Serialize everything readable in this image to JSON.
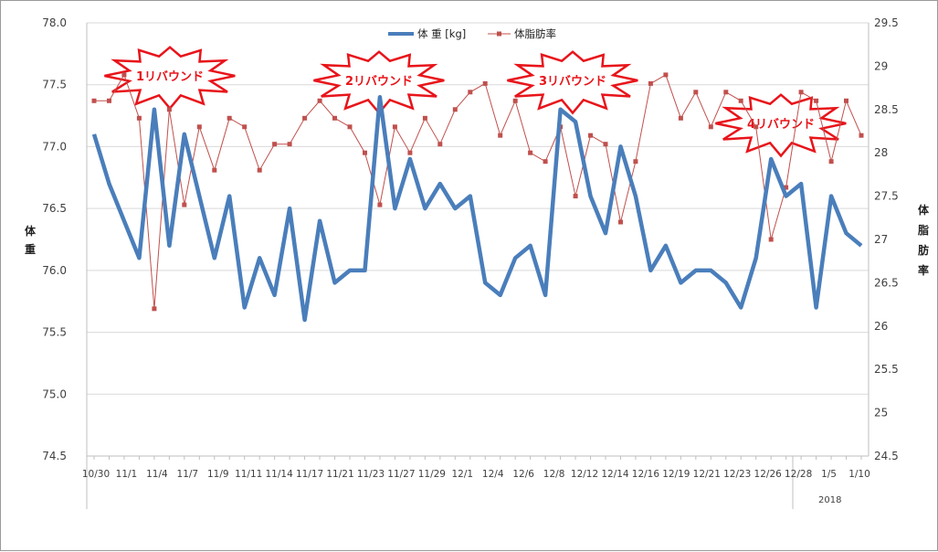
{
  "colors": {
    "weight": "#4a7ebb",
    "fat": "#c0504d",
    "burst_stroke": "#e8141a",
    "grid": "#d9d9d9"
  },
  "legend": {
    "weight": "体 重 [kg]",
    "fat": "体脂肪率"
  },
  "left_axis": {
    "title": "体重",
    "ticks": [
      "78.0",
      "77.5",
      "77.0",
      "76.5",
      "76.0",
      "75.5",
      "75.0",
      "74.5"
    ]
  },
  "right_axis": {
    "title": "体脂肪率",
    "ticks": [
      "29.5",
      "29",
      "28.5",
      "28",
      "27.5",
      "27",
      "26.5",
      "26",
      "25.5",
      "25",
      "24.5"
    ]
  },
  "x_axis": {
    "labels": [
      "10/30",
      "11/1",
      "11/4",
      "11/7",
      "11/9",
      "11/11",
      "11/14",
      "11/17",
      "11/21",
      "11/23",
      "11/27",
      "11/29",
      "12/1",
      "12/4",
      "12/6",
      "12/8",
      "12/12",
      "12/14",
      "12/16",
      "12/19",
      "12/21",
      "12/23",
      "12/26",
      "12/28",
      "1/5",
      "1/10"
    ],
    "year": "2018"
  },
  "annotations": [
    "1リバウンド",
    "2リバウンド",
    "3リバウンド",
    "4リバウンド"
  ],
  "chart_data": {
    "type": "line",
    "series": [
      {
        "name": "体 重 [kg]",
        "axis": "left",
        "ylim": [
          74.5,
          78.0
        ],
        "values": [
          77.1,
          76.7,
          76.4,
          76.1,
          77.3,
          76.2,
          77.1,
          76.6,
          76.1,
          76.6,
          75.7,
          76.1,
          75.8,
          76.5,
          75.6,
          76.4,
          75.9,
          76.0,
          76.0,
          77.4,
          76.5,
          76.9,
          76.5,
          76.7,
          76.5,
          76.6,
          75.9,
          75.8,
          76.1,
          76.2,
          75.8,
          77.3,
          77.2,
          76.6,
          76.3,
          77.0,
          76.6,
          76.0,
          76.2,
          75.9,
          76.0,
          76.0,
          75.9,
          75.7,
          76.1,
          76.9,
          76.6,
          76.7,
          75.7,
          76.6,
          76.3,
          76.2
        ]
      },
      {
        "name": "体脂肪率",
        "axis": "right",
        "ylim": [
          24.5,
          29.5
        ],
        "values": [
          28.6,
          28.6,
          28.9,
          28.4,
          26.2,
          28.5,
          27.4,
          28.3,
          27.8,
          28.4,
          28.3,
          27.8,
          28.1,
          28.1,
          28.4,
          28.6,
          28.4,
          28.3,
          28.0,
          27.4,
          28.3,
          28.0,
          28.4,
          28.1,
          28.5,
          28.7,
          28.8,
          28.2,
          28.6,
          28.0,
          27.9,
          28.3,
          27.5,
          28.2,
          28.1,
          27.2,
          27.9,
          28.8,
          28.9,
          28.4,
          28.7,
          28.3,
          28.7,
          28.6,
          28.3,
          27.0,
          27.6,
          28.7,
          28.6,
          27.9,
          28.6,
          28.2
        ]
      }
    ]
  }
}
